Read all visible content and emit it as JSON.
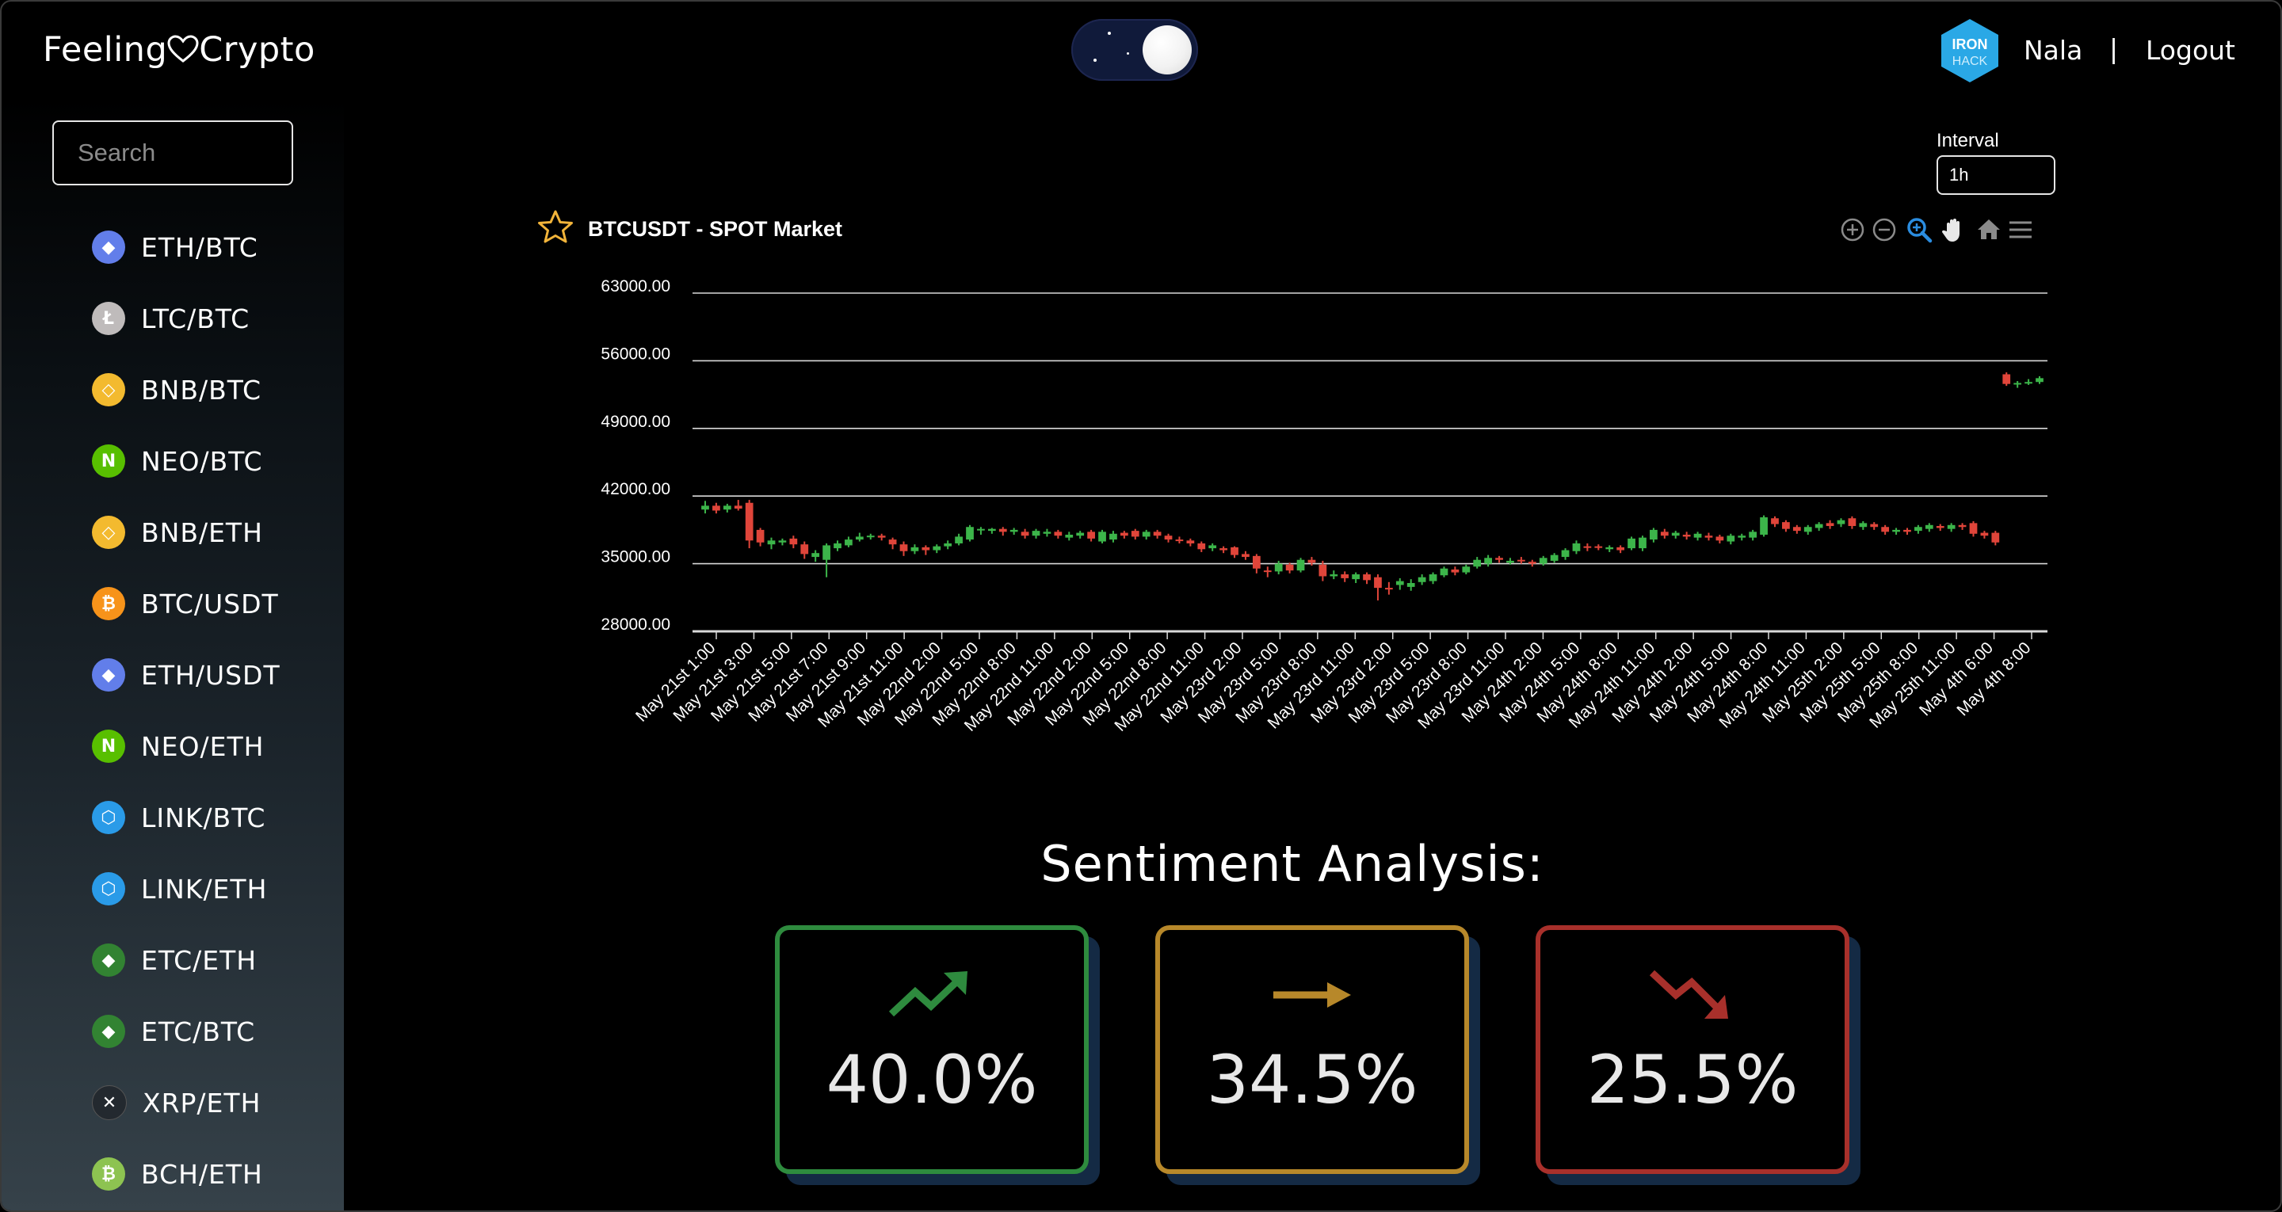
{
  "header": {
    "brand_left": "Feeling",
    "brand_right": "Crypto",
    "user_name": "Nala",
    "separator": "|",
    "logout_label": "Logout",
    "badge_line1": "IRON",
    "badge_line2": "HACK"
  },
  "sidebar": {
    "search_placeholder": "Search",
    "items": [
      {
        "label": "ETH/BTC",
        "icon": "ethereum-icon",
        "color": "#627eea"
      },
      {
        "label": "LTC/BTC",
        "icon": "litecoin-icon",
        "color": "#bfbbbb"
      },
      {
        "label": "BNB/BTC",
        "icon": "binance-icon",
        "color": "#f3ba2f"
      },
      {
        "label": "NEO/BTC",
        "icon": "neo-icon",
        "color": "#58bf00"
      },
      {
        "label": "BNB/ETH",
        "icon": "binance-icon",
        "color": "#f3ba2f"
      },
      {
        "label": "BTC/USDT",
        "icon": "bitcoin-icon",
        "color": "#f7931a"
      },
      {
        "label": "ETH/USDT",
        "icon": "ethereum-icon",
        "color": "#627eea"
      },
      {
        "label": "NEO/ETH",
        "icon": "neo-icon",
        "color": "#58bf00"
      },
      {
        "label": "LINK/BTC",
        "icon": "chainlink-icon",
        "color": "#2a9be8"
      },
      {
        "label": "LINK/ETH",
        "icon": "chainlink-icon",
        "color": "#2a9be8"
      },
      {
        "label": "ETC/ETH",
        "icon": "ethereum-classic-icon",
        "color": "#328332"
      },
      {
        "label": "ETC/BTC",
        "icon": "ethereum-classic-icon",
        "color": "#328332"
      },
      {
        "label": "XRP/ETH",
        "icon": "xrp-icon",
        "color": "#23292f"
      },
      {
        "label": "BCH/ETH",
        "icon": "bitcoin-cash-icon",
        "color": "#8dc351"
      }
    ]
  },
  "interval": {
    "label": "Interval",
    "value": "1h"
  },
  "chart": {
    "title": "BTCUSDT - SPOT Market"
  },
  "chart_data": {
    "type": "candlestick",
    "title": "BTCUSDT - SPOT Market",
    "ylim": [
      28000,
      63000
    ],
    "y_ticks": [
      "63000.00",
      "56000.00",
      "49000.00",
      "42000.00",
      "35000.00",
      "28000.00"
    ],
    "x_tick_labels": [
      "May 21st 1:00",
      "May 21st 3:00",
      "May 21st 5:00",
      "May 21st 7:00",
      "May 21st 9:00",
      "May 21st 11:00",
      "May 22nd 2:00",
      "May 22nd 5:00",
      "May 22nd 8:00",
      "May 22nd 11:00",
      "May 22nd 2:00",
      "May 22nd 5:00",
      "May 22nd 8:00",
      "May 22nd 11:00",
      "May 23rd 2:00",
      "May 23rd 5:00",
      "May 23rd 8:00",
      "May 23rd 11:00",
      "May 23rd 2:00",
      "May 23rd 5:00",
      "May 23rd 8:00",
      "May 23rd 11:00",
      "May 24th 2:00",
      "May 24th 5:00",
      "May 24th 8:00",
      "May 24th 11:00",
      "May 24th 2:00",
      "May 24th 5:00",
      "May 24th 8:00",
      "May 24th 11:00",
      "May 25th 2:00",
      "May 25th 5:00",
      "May 25th 8:00",
      "May 25th 11:00",
      "May 4th 6:00",
      "May 4th 8:00"
    ],
    "colors": {
      "up": "#3cb54a",
      "down": "#e0453a"
    },
    "candles": [
      [
        40600,
        41000,
        41500,
        40200
      ],
      [
        41000,
        40500,
        41300,
        40200
      ],
      [
        40600,
        41000,
        41200,
        40300
      ],
      [
        41000,
        40700,
        41600,
        40500
      ],
      [
        41300,
        37400,
        41600,
        36600
      ],
      [
        38500,
        37200,
        38700,
        36800
      ],
      [
        37000,
        37400,
        37700,
        36500
      ],
      [
        37200,
        37400,
        37600,
        36900
      ],
      [
        37600,
        37000,
        37900,
        36600
      ],
      [
        37000,
        36000,
        37300,
        35500
      ],
      [
        35700,
        36100,
        36400,
        35200
      ],
      [
        35400,
        36900,
        37100,
        33600
      ],
      [
        36600,
        37100,
        37400,
        36300
      ],
      [
        36900,
        37500,
        37800,
        36700
      ],
      [
        37500,
        37800,
        38200,
        37300
      ],
      [
        37800,
        37900,
        38100,
        37500
      ],
      [
        37900,
        37700,
        38100,
        37400
      ],
      [
        37500,
        37000,
        37700,
        36500
      ],
      [
        37000,
        36300,
        37300,
        35800
      ],
      [
        36300,
        36700,
        37000,
        36000
      ],
      [
        36700,
        36400,
        36900,
        35900
      ],
      [
        36400,
        36800,
        37000,
        36100
      ],
      [
        36800,
        37100,
        37400,
        36500
      ],
      [
        37100,
        37800,
        38100,
        36900
      ],
      [
        37500,
        38800,
        39000,
        37300
      ],
      [
        38500,
        38600,
        38800,
        38000
      ],
      [
        38400,
        38600,
        38700,
        38100
      ],
      [
        38600,
        38300,
        38800,
        37900
      ],
      [
        38300,
        38500,
        38700,
        38000
      ],
      [
        38300,
        37900,
        38600,
        37600
      ],
      [
        37900,
        38400,
        38600,
        37600
      ],
      [
        38100,
        38300,
        38600,
        37800
      ],
      [
        38300,
        37900,
        38500,
        37600
      ],
      [
        37700,
        38000,
        38300,
        37400
      ],
      [
        37900,
        38200,
        38400,
        37600
      ],
      [
        38300,
        37600,
        38500,
        37300
      ],
      [
        37300,
        38300,
        38500,
        37100
      ],
      [
        37500,
        38100,
        38400,
        37200
      ],
      [
        38200,
        37900,
        38400,
        37600
      ],
      [
        38400,
        37800,
        38600,
        37500
      ],
      [
        37800,
        38300,
        38500,
        37500
      ],
      [
        38300,
        37900,
        38500,
        37600
      ],
      [
        37900,
        37500,
        38100,
        37200
      ],
      [
        37500,
        37400,
        37800,
        37100
      ],
      [
        37400,
        37100,
        37600,
        36800
      ],
      [
        37100,
        36500,
        37300,
        36200
      ],
      [
        36600,
        36900,
        37100,
        36300
      ],
      [
        36600,
        36400,
        36800,
        36100
      ],
      [
        36700,
        35900,
        36800,
        35600
      ],
      [
        36000,
        35700,
        36300,
        35400
      ],
      [
        35800,
        34500,
        36000,
        34000
      ],
      [
        34300,
        34200,
        34700,
        33600
      ],
      [
        34200,
        35000,
        35300,
        33900
      ],
      [
        34900,
        34300,
        35100,
        34000
      ],
      [
        34300,
        35400,
        35600,
        34100
      ],
      [
        35400,
        35100,
        35700,
        34800
      ],
      [
        34900,
        33700,
        35300,
        33200
      ],
      [
        33700,
        33900,
        34300,
        33400
      ],
      [
        33900,
        33500,
        34200,
        33100
      ],
      [
        33400,
        33900,
        34100,
        33000
      ],
      [
        33900,
        33300,
        34100,
        32900
      ],
      [
        33600,
        32500,
        33900,
        31200
      ],
      [
        32500,
        32400,
        33100,
        31800
      ],
      [
        32800,
        33200,
        33500,
        32300
      ],
      [
        32600,
        33000,
        33400,
        32200
      ],
      [
        33100,
        33600,
        33900,
        32800
      ],
      [
        33200,
        33900,
        34100,
        32900
      ],
      [
        33800,
        34500,
        34700,
        33600
      ],
      [
        34400,
        34100,
        34700,
        33800
      ],
      [
        34100,
        34700,
        34900,
        33900
      ],
      [
        34700,
        35400,
        35700,
        34500
      ],
      [
        35000,
        35600,
        35900,
        34700
      ],
      [
        35600,
        35400,
        35800,
        35100
      ],
      [
        35100,
        35300,
        35600,
        34900
      ],
      [
        35400,
        35300,
        35700,
        35000
      ],
      [
        35200,
        35000,
        35400,
        34700
      ],
      [
        35000,
        35600,
        35800,
        34800
      ],
      [
        35300,
        35900,
        36100,
        35100
      ],
      [
        35700,
        36400,
        36600,
        35400
      ],
      [
        36300,
        37100,
        37400,
        36000
      ],
      [
        36800,
        36700,
        37100,
        36300
      ],
      [
        36800,
        36700,
        37000,
        36400
      ],
      [
        36500,
        36700,
        36900,
        36200
      ],
      [
        36700,
        36400,
        36900,
        36100
      ],
      [
        36600,
        37600,
        37800,
        36400
      ],
      [
        36600,
        37700,
        37900,
        36300
      ],
      [
        37500,
        38500,
        38700,
        37200
      ],
      [
        38300,
        37900,
        38600,
        37600
      ],
      [
        37900,
        38200,
        38400,
        37600
      ],
      [
        38000,
        37800,
        38300,
        37500
      ],
      [
        37700,
        38100,
        38300,
        37400
      ],
      [
        37900,
        37700,
        38200,
        37400
      ],
      [
        37800,
        37400,
        38000,
        37100
      ],
      [
        37300,
        37900,
        38100,
        37000
      ],
      [
        37700,
        37900,
        38100,
        37400
      ],
      [
        37700,
        38300,
        38500,
        37400
      ],
      [
        38000,
        39800,
        40000,
        37800
      ],
      [
        39700,
        39100,
        39900,
        38800
      ],
      [
        39300,
        38600,
        39500,
        38300
      ],
      [
        38800,
        38400,
        39000,
        38100
      ],
      [
        38300,
        38800,
        39000,
        38000
      ],
      [
        38700,
        39100,
        39300,
        38400
      ],
      [
        39200,
        38900,
        39500,
        38600
      ],
      [
        39100,
        39500,
        39700,
        38800
      ],
      [
        39700,
        38900,
        39900,
        38600
      ],
      [
        38800,
        39200,
        39400,
        38500
      ],
      [
        39100,
        38800,
        39300,
        38500
      ],
      [
        38800,
        38300,
        39000,
        38000
      ],
      [
        38300,
        38500,
        38700,
        38000
      ],
      [
        38500,
        38300,
        38700,
        38000
      ],
      [
        38400,
        38800,
        39000,
        38100
      ],
      [
        38600,
        39000,
        39200,
        38300
      ],
      [
        38900,
        38700,
        39100,
        38400
      ],
      [
        38600,
        39000,
        39200,
        38300
      ],
      [
        39000,
        38800,
        39200,
        38500
      ],
      [
        39200,
        38100,
        39400,
        37800
      ],
      [
        38200,
        37900,
        38400,
        37600
      ],
      [
        38200,
        37200,
        38400,
        36900
      ],
      [
        54600,
        53600,
        54800,
        53400
      ],
      [
        53600,
        53700,
        53900,
        53200
      ],
      [
        53700,
        53800,
        54100,
        53500
      ],
      [
        53800,
        54200,
        54400,
        53600
      ]
    ]
  },
  "sentiment": {
    "heading": "Sentiment Analysis:",
    "cards": [
      {
        "label": "positive",
        "value": "40.0%",
        "color": "#2e8b3e",
        "icon": "trend-up-icon"
      },
      {
        "label": "neutral",
        "value": "34.5%",
        "color": "#b7882a",
        "icon": "trend-flat-icon"
      },
      {
        "label": "negative",
        "value": "25.5%",
        "color": "#a8302b",
        "icon": "trend-down-icon"
      }
    ]
  }
}
